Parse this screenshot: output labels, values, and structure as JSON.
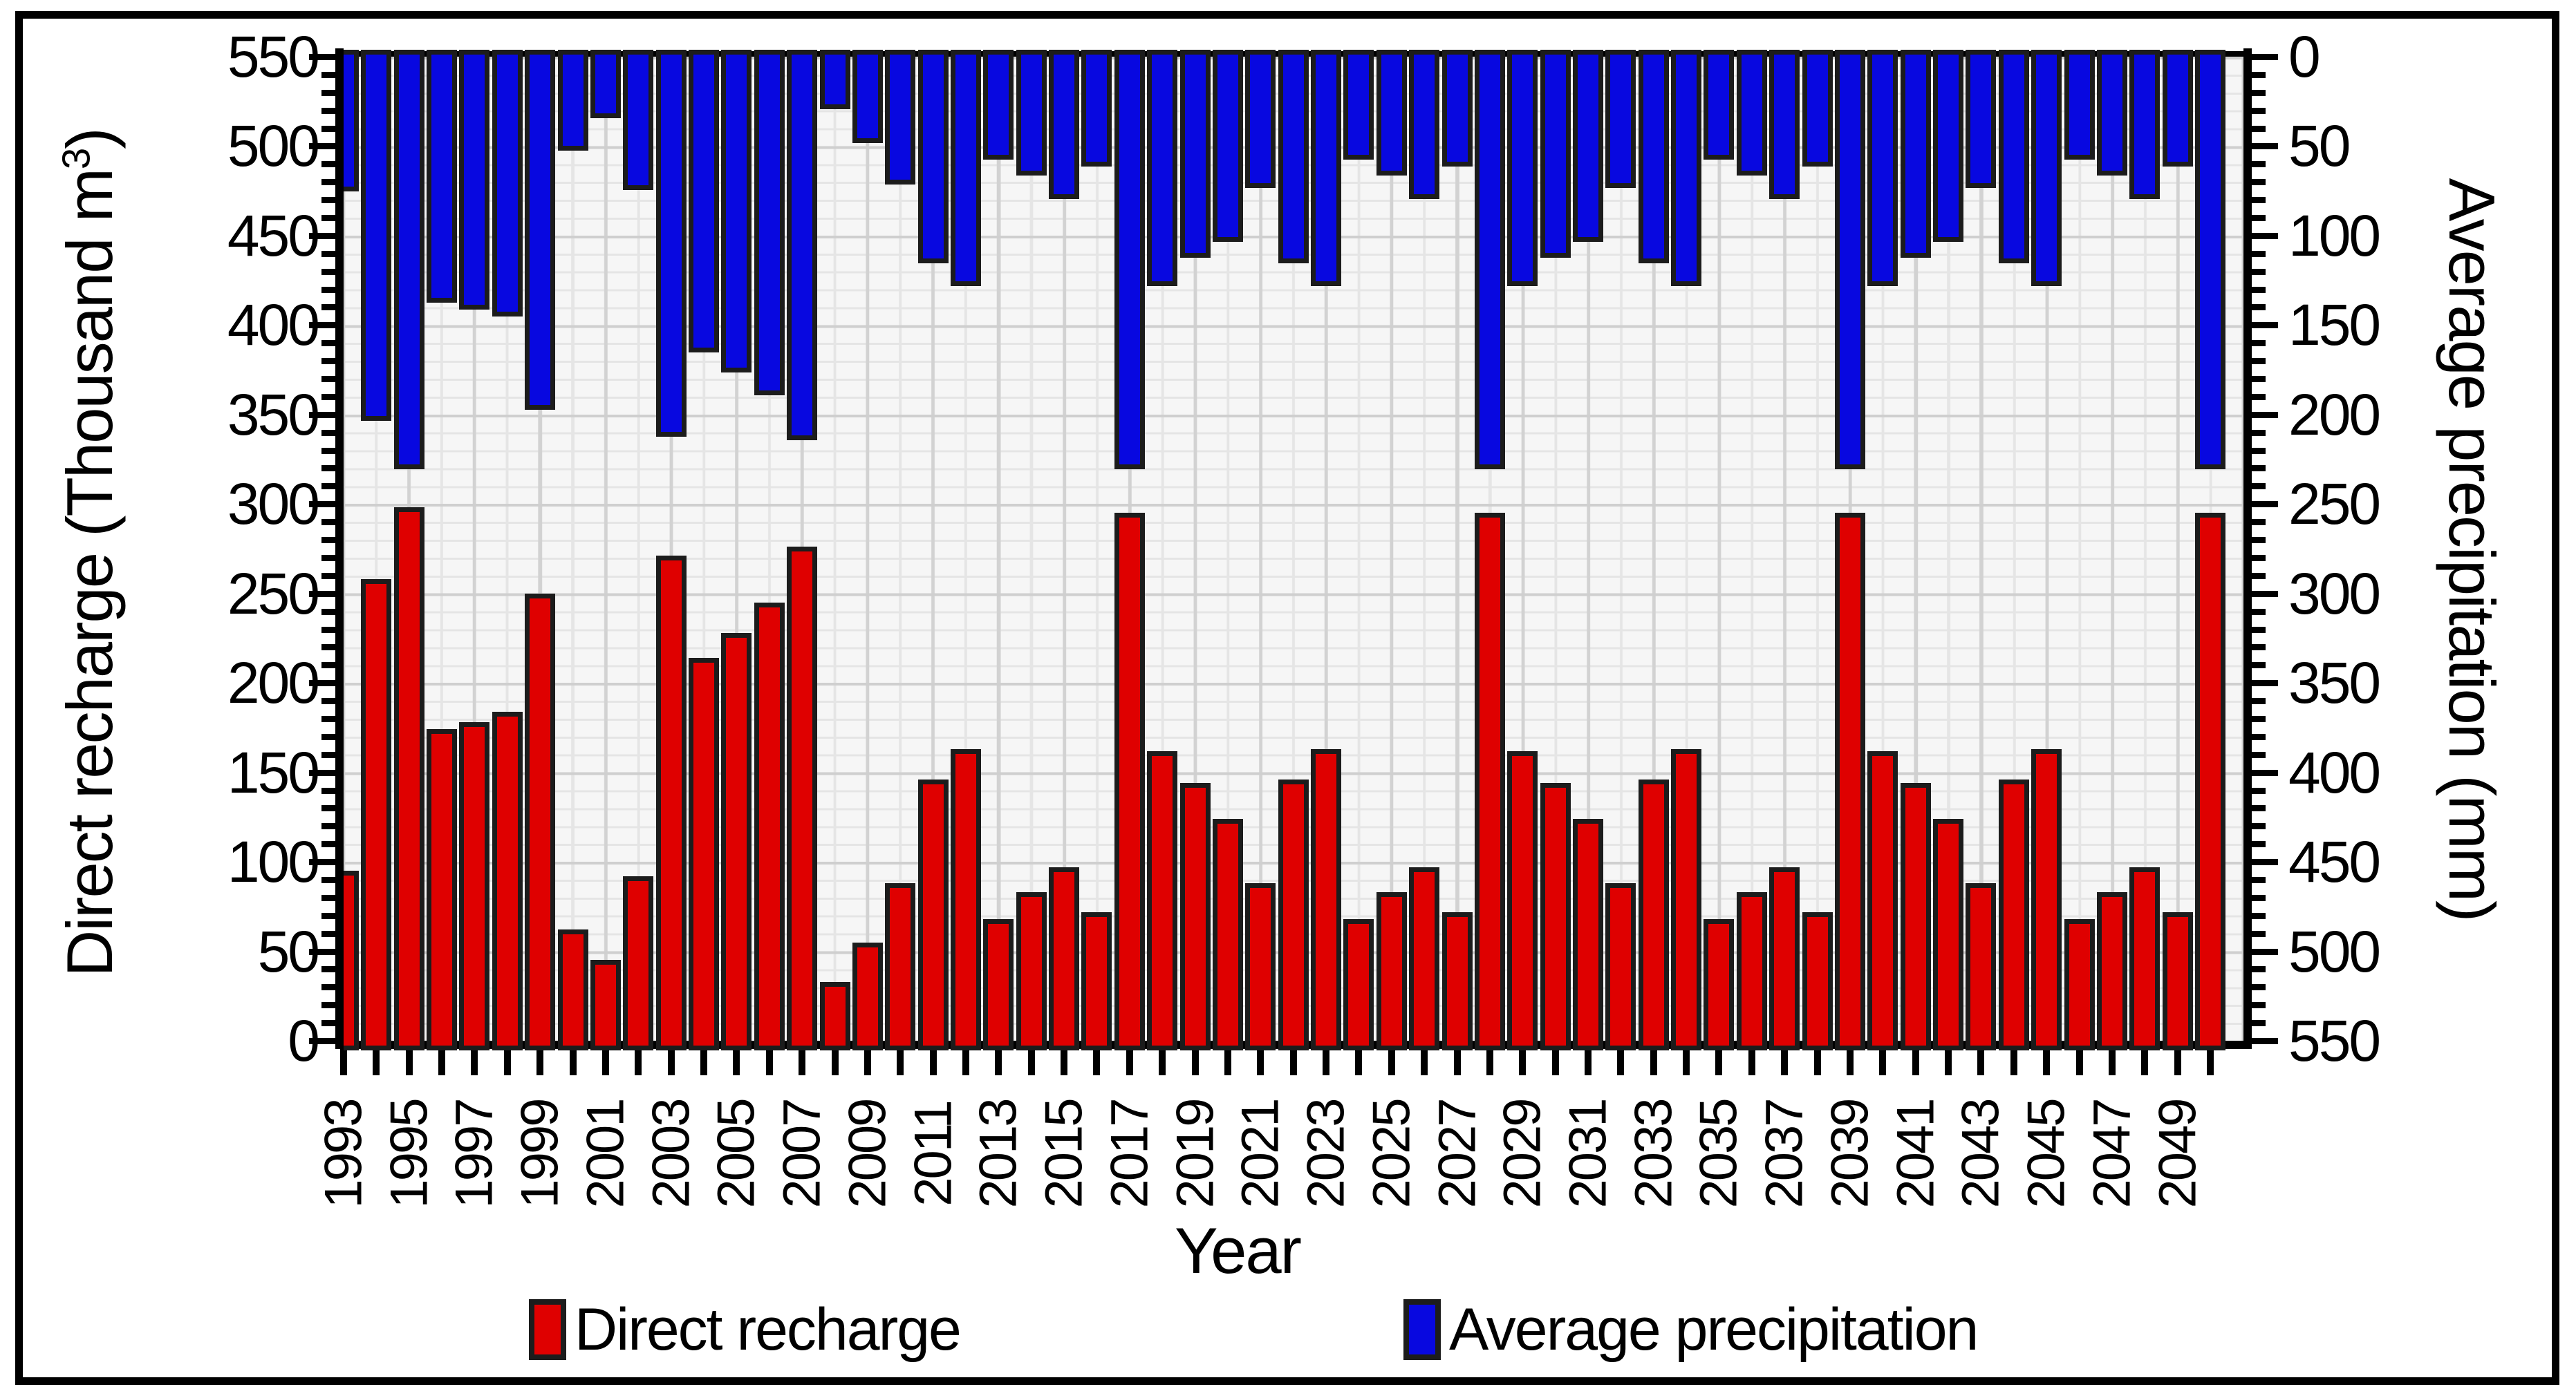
{
  "figure": {
    "left_title": {
      "pre": "Direct recharge (Thousand m",
      "sup": "3",
      "post": ")"
    },
    "right_title": "Average precipitation (mm)",
    "x_title": "Year"
  },
  "colors": {
    "recharge": "#DF0000",
    "precipitation": "#0808E0",
    "bar_border": "#1C1C1C",
    "axis": "#000000"
  },
  "chart_data": {
    "type": "bar",
    "title": "",
    "xlabel": "Year",
    "x": [
      1993,
      1994,
      1995,
      1996,
      1997,
      1998,
      1999,
      2000,
      2001,
      2002,
      2003,
      2004,
      2005,
      2006,
      2007,
      2008,
      2009,
      2010,
      2011,
      2012,
      2013,
      2014,
      2015,
      2016,
      2017,
      2018,
      2019,
      2020,
      2021,
      2022,
      2023,
      2024,
      2025,
      2026,
      2027,
      2028,
      2029,
      2030,
      2031,
      2032,
      2033,
      2034,
      2035,
      2036,
      2037,
      2038,
      2039,
      2040,
      2041,
      2042,
      2043,
      2044,
      2045,
      2046,
      2047,
      2048,
      2049,
      2050
    ],
    "x_tick_labels": [
      1993,
      1995,
      1997,
      1999,
      2001,
      2003,
      2005,
      2007,
      2009,
      2011,
      2013,
      2015,
      2017,
      2019,
      2021,
      2023,
      2025,
      2027,
      2029,
      2031,
      2033,
      2035,
      2037,
      2039,
      2041,
      2043,
      2045,
      2047,
      2049
    ],
    "series": [
      {
        "name": "Direct recharge",
        "axis": "left",
        "unit": "Thousand m3",
        "values": [
          95,
          258,
          298,
          174,
          178,
          184,
          250,
          62,
          45,
          92,
          271,
          214,
          228,
          245,
          276,
          33,
          55,
          88,
          146,
          163,
          68,
          83,
          97,
          72,
          295,
          162,
          144,
          124,
          88,
          146,
          163,
          68,
          83,
          97,
          72,
          295,
          162,
          144,
          124,
          88,
          146,
          163,
          68,
          83,
          97,
          72,
          295,
          162,
          144,
          124,
          88,
          146,
          163,
          68,
          83,
          97,
          72,
          295
        ]
      },
      {
        "name": "Average precipitation",
        "axis": "right",
        "unit": "mm",
        "values": [
          70,
          198,
          225,
          132,
          136,
          140,
          192,
          47,
          29,
          69,
          207,
          160,
          171,
          184,
          209,
          24,
          43,
          66,
          110,
          123,
          52,
          61,
          74,
          56,
          225,
          123,
          107,
          98,
          68,
          110,
          123,
          52,
          61,
          74,
          56,
          225,
          123,
          107,
          98,
          68,
          110,
          123,
          52,
          61,
          74,
          56,
          225,
          123,
          107,
          98,
          68,
          110,
          123,
          52,
          61,
          74,
          56,
          225
        ]
      }
    ],
    "left_axis": {
      "label": "Direct recharge (Thousand m3)",
      "min": 0,
      "max": 550,
      "tick_step": 50,
      "minor_step": 10,
      "ticks": [
        0,
        50,
        100,
        150,
        200,
        250,
        300,
        350,
        400,
        450,
        500,
        550
      ]
    },
    "right_axis": {
      "label": "Average precipitation (mm)",
      "min": 0,
      "max": 550,
      "tick_step": 50,
      "minor_step": 10,
      "inverted": true,
      "ticks": [
        0,
        50,
        100,
        150,
        200,
        250,
        300,
        350,
        400,
        450,
        500,
        550
      ]
    },
    "grid": {
      "minor": true,
      "major": true
    },
    "legend_position": "bottom"
  },
  "legend": {
    "items": [
      {
        "label": "Direct recharge",
        "color": "#DF0000"
      },
      {
        "label": "Average precipitation",
        "color": "#0808E0"
      }
    ]
  }
}
